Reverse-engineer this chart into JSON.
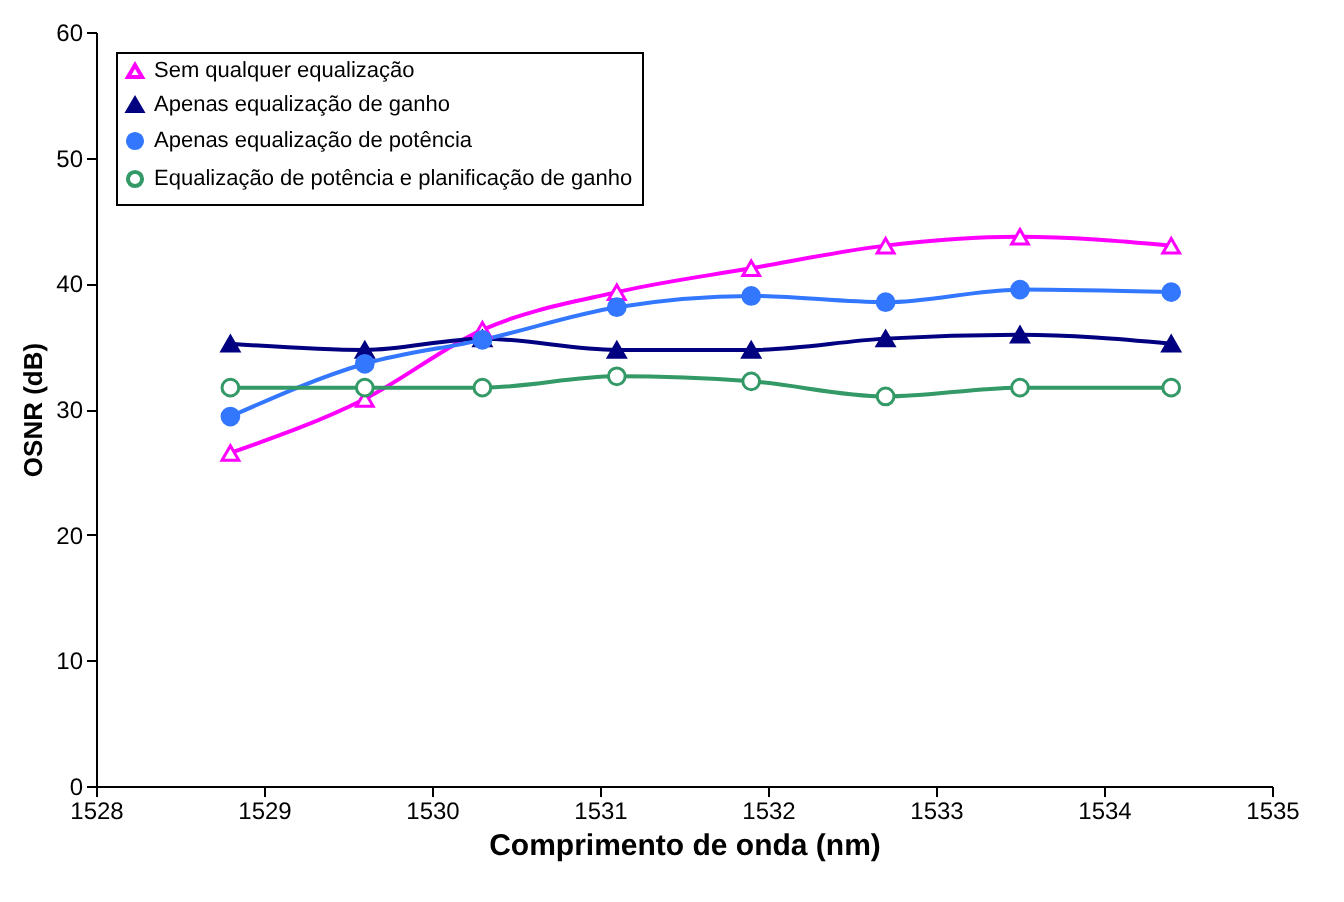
{
  "chart_data": {
    "type": "line",
    "xlabel": "Comprimento de onda (nm)",
    "ylabel": "OSNR (dB)",
    "x": [
      1528.8,
      1529.6,
      1530.3,
      1531.1,
      1531.9,
      1532.7,
      1533.5,
      1534.4
    ],
    "series": [
      {
        "name": "Sem qualquer equalização",
        "color": "#ff00ff",
        "marker": "triangle",
        "values": [
          26.5,
          30.8,
          36.3,
          39.3,
          41.2,
          43.0,
          43.7,
          43.0
        ]
      },
      {
        "name": "Apenas equalização de ganho",
        "color": "#000080",
        "marker": "triangle",
        "values": [
          35.2,
          34.7,
          35.6,
          34.7,
          34.7,
          35.6,
          35.9,
          35.2
        ]
      },
      {
        "name": "Apenas equalização de potência",
        "color": "#3377ff",
        "marker": "circle",
        "values": [
          29.4,
          33.6,
          35.5,
          38.1,
          39.0,
          38.5,
          39.5,
          39.3
        ]
      },
      {
        "name": "Equalização de potência e planificação de ganho",
        "color": "#339966",
        "marker": "circle",
        "values": [
          31.7,
          31.7,
          31.7,
          32.6,
          32.2,
          31.0,
          31.7,
          31.7
        ]
      }
    ],
    "xlim": [
      1528,
      1535
    ],
    "xticks": [
      1528,
      1529,
      1530,
      1531,
      1532,
      1533,
      1534,
      1535
    ],
    "ylim": [
      0,
      60
    ],
    "yticks": [
      0,
      10,
      20,
      30,
      40,
      50,
      60
    ],
    "grid": false,
    "legend": "top left",
    "line_style": "solid"
  }
}
